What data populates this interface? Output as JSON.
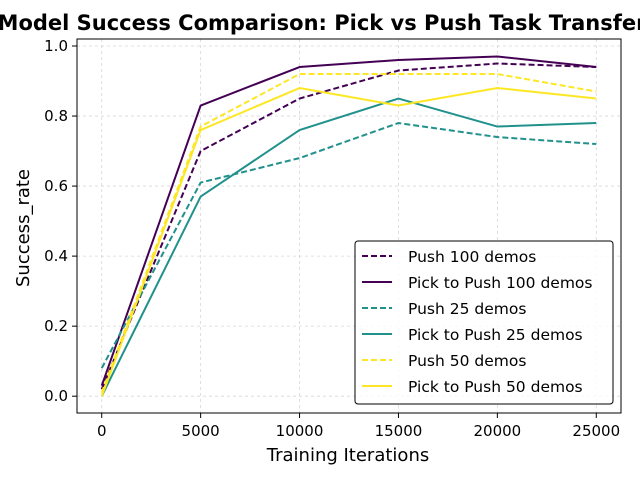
{
  "chart_data": {
    "type": "line",
    "title": "Model Success Comparison: Pick vs Push Task Transfer",
    "xlabel": "Training Iterations",
    "ylabel": "Success_rate",
    "x": [
      0,
      5000,
      10000,
      15000,
      20000,
      25000
    ],
    "xticks": [
      "0",
      "5000",
      "10000",
      "15000",
      "20000",
      "25000"
    ],
    "yticks": [
      "0.0",
      "0.2",
      "0.4",
      "0.6",
      "0.8",
      "1.0"
    ],
    "xlim": [
      -1250,
      26250
    ],
    "ylim": [
      -0.048,
      1.02
    ],
    "grid": true,
    "legend_position": "lower-right",
    "series": [
      {
        "name": "Push 100 demos",
        "color": "#440154",
        "style": "dashed",
        "values": [
          0.02,
          0.7,
          0.85,
          0.93,
          0.95,
          0.94
        ]
      },
      {
        "name": "Pick to Push 100 demos",
        "color": "#440154",
        "style": "solid",
        "values": [
          0.03,
          0.83,
          0.94,
          0.96,
          0.97,
          0.94
        ]
      },
      {
        "name": "Push 25 demos",
        "color": "#21918c",
        "style": "dashed",
        "values": [
          0.08,
          0.61,
          0.68,
          0.78,
          0.74,
          0.72
        ]
      },
      {
        "name": "Pick to Push 25 demos",
        "color": "#21918c",
        "style": "solid",
        "values": [
          0.0,
          0.57,
          0.76,
          0.85,
          0.77,
          0.78
        ]
      },
      {
        "name": "Push 50 demos",
        "color": "#fde725",
        "style": "dashed",
        "values": [
          0.01,
          0.77,
          0.92,
          0.92,
          0.92,
          0.87
        ]
      },
      {
        "name": "Pick to Push 50 demos",
        "color": "#fde725",
        "style": "solid",
        "values": [
          0.0,
          0.76,
          0.88,
          0.83,
          0.88,
          0.85
        ]
      }
    ]
  }
}
